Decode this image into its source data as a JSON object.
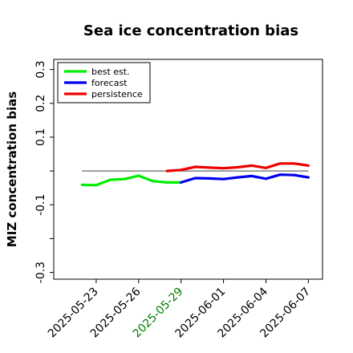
{
  "chart_data": {
    "type": "line",
    "title": "Sea ice concentration bias",
    "xlabel": "",
    "ylabel": "MIZ concentration bias",
    "x_ticks": [
      "2025-05-23",
      "2025-05-26",
      "2025-05-29",
      "2025-06-01",
      "2025-06-04",
      "2025-06-07"
    ],
    "highlighted_tick": "2025-05-29",
    "highlight_color": "#008000",
    "y_ticks": [
      0.3,
      0.2,
      0.1,
      0.0,
      -0.1,
      -0.2,
      -0.3
    ],
    "y_tick_labels": [
      "0.3",
      "0.2",
      "0.1",
      "",
      "-0.1",
      "",
      "-0.3"
    ],
    "ylim": [
      -0.32,
      0.33
    ],
    "xlim": [
      "2025-05-20",
      "2025-06-08"
    ],
    "grid": false,
    "legend_position": "top-left",
    "reference_line": {
      "y": 0.0,
      "from": "2025-05-22",
      "to": "2025-06-07",
      "color": "#666666"
    },
    "series": [
      {
        "name": "best est.",
        "color": "#00ee00",
        "x": [
          "2025-05-22",
          "2025-05-23",
          "2025-05-24",
          "2025-05-25",
          "2025-05-26",
          "2025-05-27",
          "2025-05-28",
          "2025-05-29"
        ],
        "values": [
          -0.041,
          -0.042,
          -0.026,
          -0.024,
          -0.014,
          -0.03,
          -0.034,
          -0.034
        ]
      },
      {
        "name": "forecast",
        "color": "#0000ee",
        "x": [
          "2025-05-29",
          "2025-05-30",
          "2025-05-31",
          "2025-06-01",
          "2025-06-02",
          "2025-06-03",
          "2025-06-04",
          "2025-06-05",
          "2025-06-06",
          "2025-06-07"
        ],
        "values": [
          -0.034,
          -0.021,
          -0.022,
          -0.024,
          -0.019,
          -0.015,
          -0.023,
          -0.011,
          -0.012,
          -0.019
        ]
      },
      {
        "name": "persistence",
        "color": "#ee0000",
        "x": [
          "2025-05-28",
          "2025-05-29",
          "2025-05-30",
          "2025-05-31",
          "2025-06-01",
          "2025-06-02",
          "2025-06-03",
          "2025-06-04",
          "2025-06-05",
          "2025-06-06",
          "2025-06-07"
        ],
        "values": [
          0.0,
          0.003,
          0.012,
          0.01,
          0.008,
          0.011,
          0.016,
          0.009,
          0.022,
          0.022,
          0.016
        ]
      }
    ]
  }
}
